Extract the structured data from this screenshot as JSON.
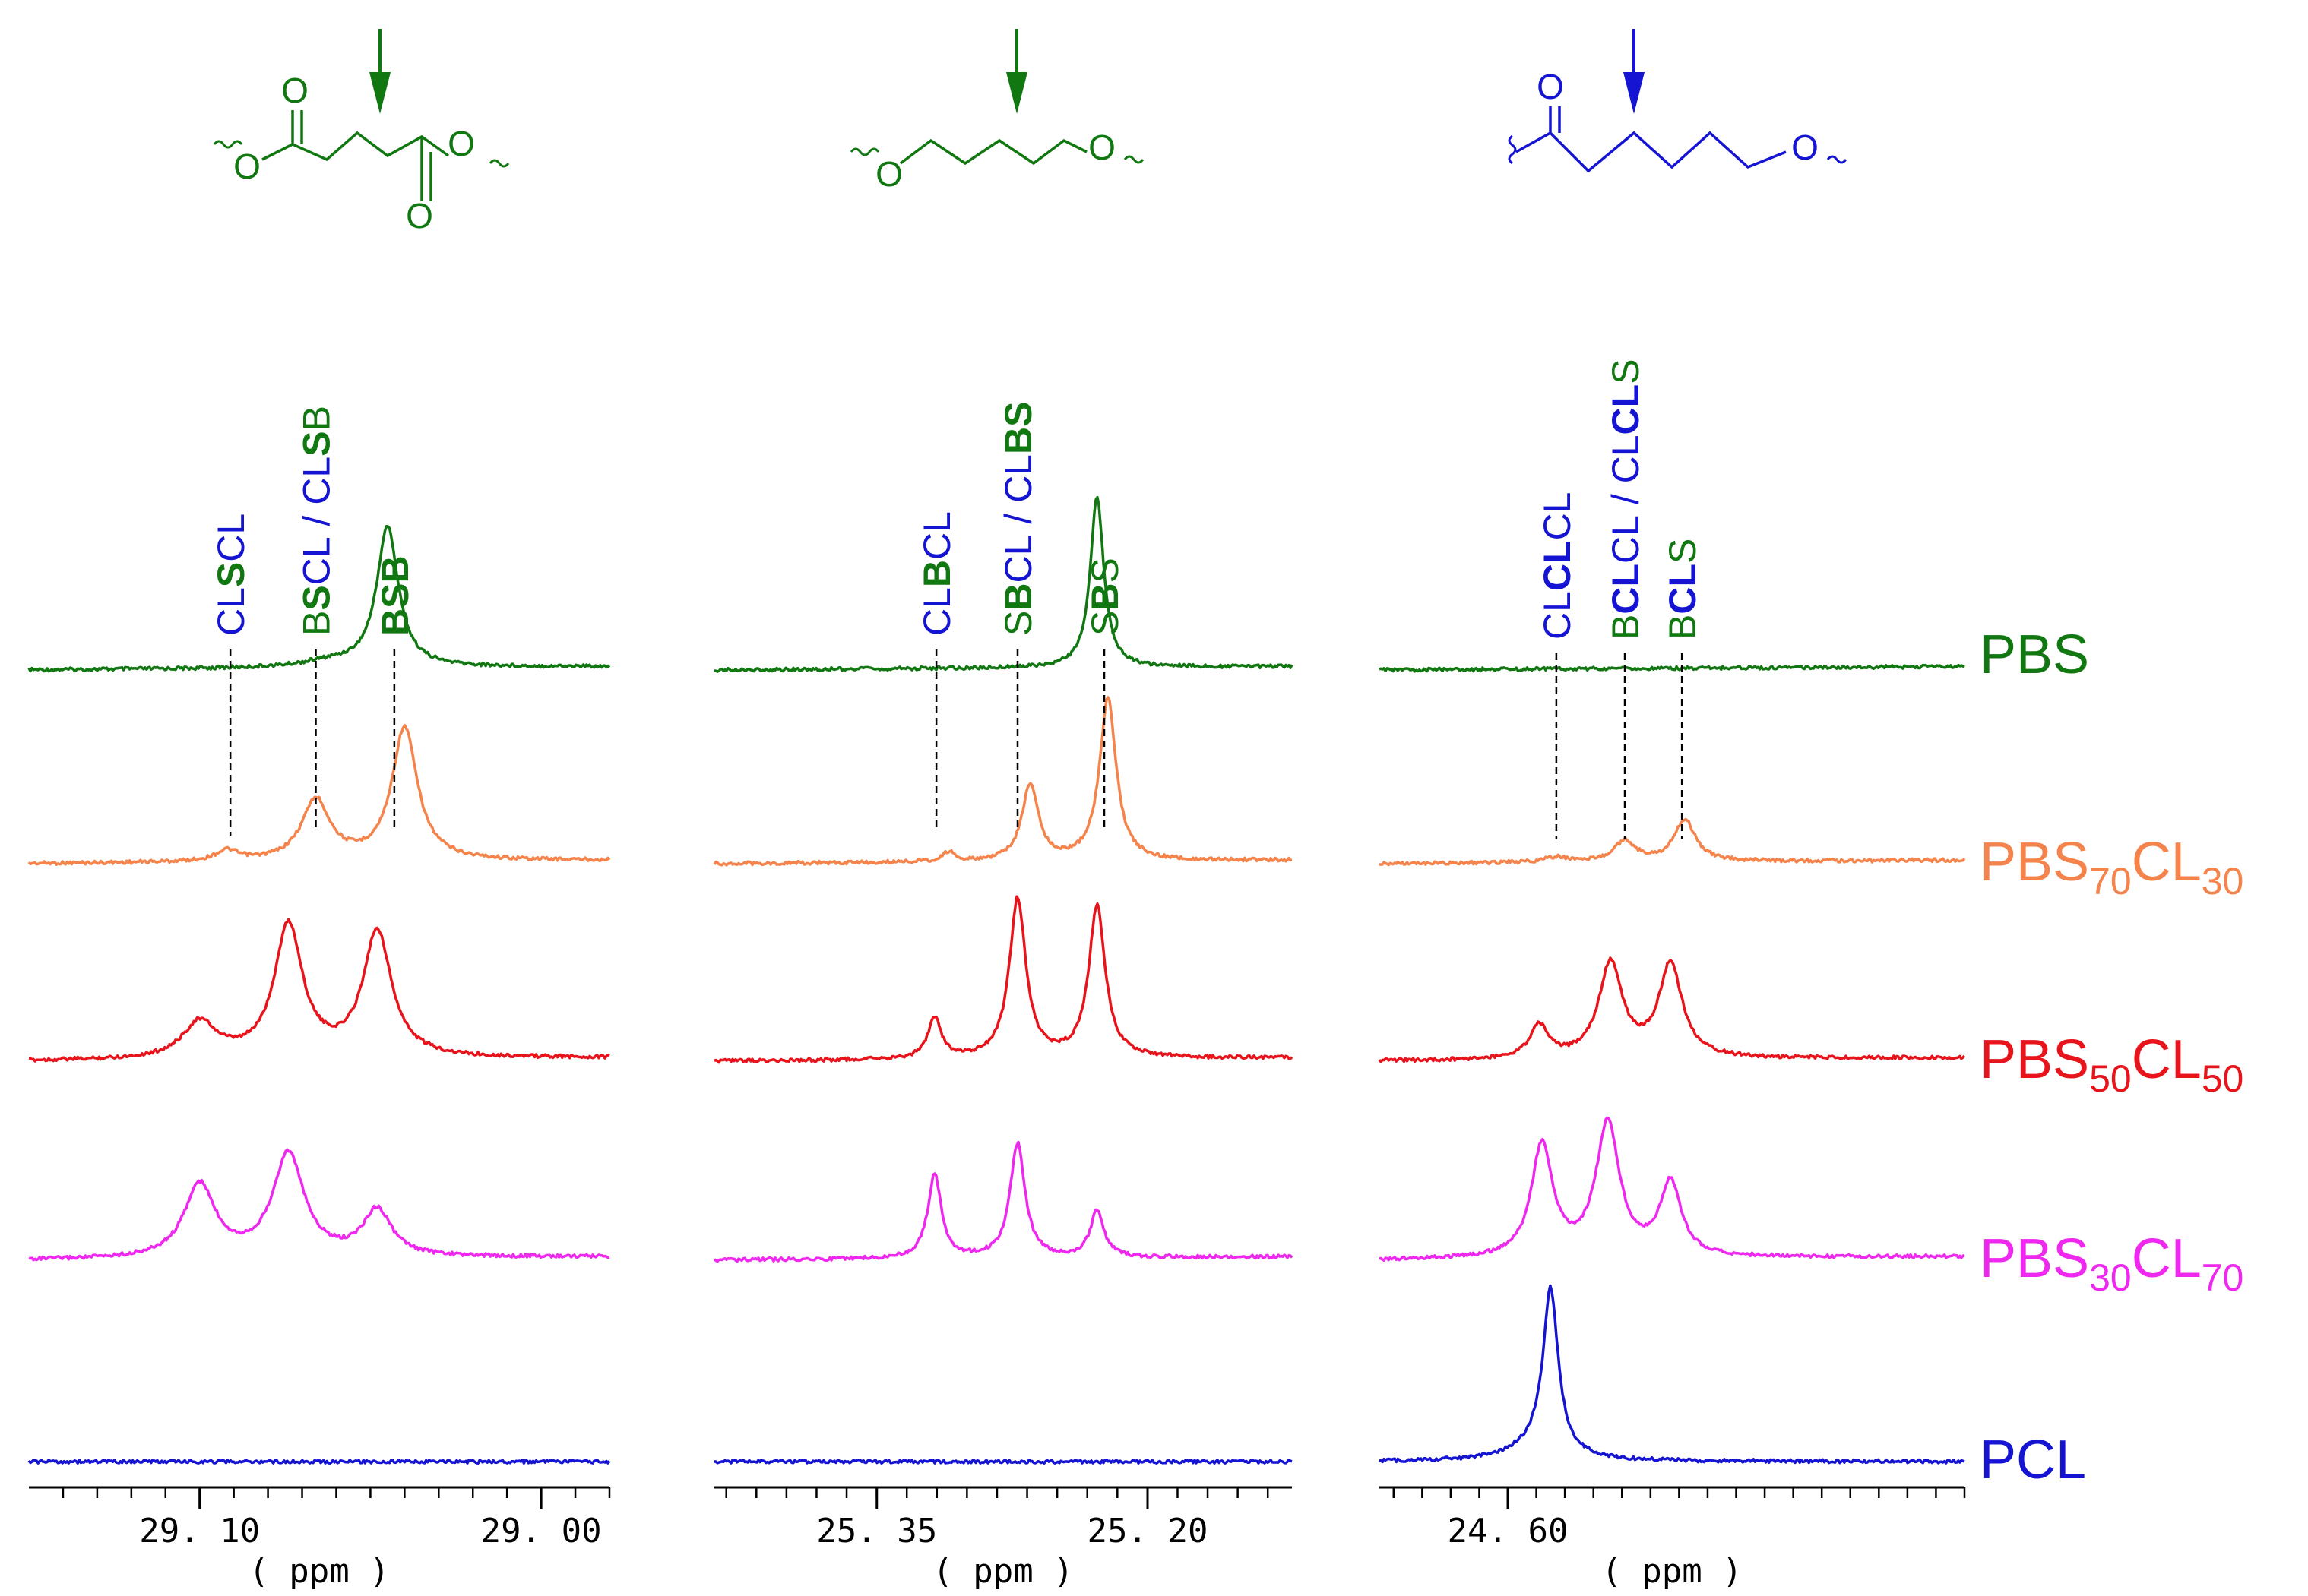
{
  "chart_data": {
    "type": "line",
    "title": "",
    "colors": {
      "PBS": "#117711",
      "PBS70CL30": "#F4844B",
      "PBS50CL50": "#E8141B",
      "PBS30CL70": "#EE28EE",
      "PCL": "#1414D2",
      "S_unit": "#117711",
      "B_unit": "#117711",
      "CL_unit": "#1414D2",
      "axis": "#000000"
    },
    "series_order": [
      "PBS",
      "PBS70CL30",
      "PBS50CL50",
      "PBS30CL70",
      "PCL"
    ],
    "series_labels": [
      {
        "key": "PBS",
        "base": "PBS",
        "sub1": "",
        "mid": "",
        "sub2": ""
      },
      {
        "key": "PBS70CL30",
        "base": "PBS",
        "sub1": "70",
        "mid": "CL",
        "sub2": "30"
      },
      {
        "key": "PBS50CL50",
        "base": "PBS",
        "sub1": "50",
        "mid": "CL",
        "sub2": "50"
      },
      {
        "key": "PBS30CL70",
        "base": "PBS",
        "sub1": "30",
        "mid": "CL",
        "sub2": "70"
      },
      {
        "key": "PCL",
        "base": "PCL",
        "sub1": "",
        "mid": "",
        "sub2": ""
      }
    ],
    "panels": [
      {
        "id": "panel-1",
        "xlabel": "( ppm )",
        "xlim": [
          29.15,
          28.98
        ],
        "ticks_major": [
          29.1,
          29.0
        ],
        "tick_labels": [
          "29. 10",
          "29. 00"
        ],
        "minor_step": 0.01,
        "structure": "succinate",
        "assignments": [
          {
            "x": 29.091,
            "parts": [
              {
                "t": "CL",
                "c": "CL_unit",
                "b": false
              },
              {
                "t": "S",
                "c": "S_unit",
                "b": true
              },
              {
                "t": "CL",
                "c": "CL_unit",
                "b": false
              }
            ]
          },
          {
            "x": 29.066,
            "parts": [
              {
                "t": "B",
                "c": "B_unit",
                "b": false
              },
              {
                "t": "S",
                "c": "S_unit",
                "b": true
              },
              {
                "t": "CL",
                "c": "CL_unit",
                "b": false
              },
              {
                "t": " / ",
                "c": "CL_unit",
                "b": false
              },
              {
                "t": "CL",
                "c": "CL_unit",
                "b": false
              },
              {
                "t": "S",
                "c": "S_unit",
                "b": true
              },
              {
                "t": "B",
                "c": "B_unit",
                "b": false
              }
            ]
          },
          {
            "x": 29.043,
            "parts": [
              {
                "t": "B",
                "c": "B_unit",
                "b": true
              },
              {
                "t": "S",
                "c": "S_unit",
                "b": true
              },
              {
                "t": "B",
                "c": "B_unit",
                "b": true
              }
            ]
          }
        ],
        "spectra": {
          "PBS": [
            {
              "center": 29.045,
              "height": 1.0,
              "width": 0.0038
            },
            {
              "center": 29.062,
              "height": 0.04,
              "width": 0.01
            }
          ],
          "PBS70CL30": [
            {
              "center": 29.04,
              "height": 1.0,
              "width": 0.0045
            },
            {
              "center": 29.066,
              "height": 0.46,
              "width": 0.005
            },
            {
              "center": 29.092,
              "height": 0.08,
              "width": 0.004
            }
          ],
          "PBS50CL50": [
            {
              "center": 29.048,
              "height": 0.95,
              "width": 0.005
            },
            {
              "center": 29.074,
              "height": 1.0,
              "width": 0.005
            },
            {
              "center": 29.1,
              "height": 0.27,
              "width": 0.006
            }
          ],
          "PBS30CL70": [
            {
              "center": 29.048,
              "height": 0.35,
              "width": 0.005
            },
            {
              "center": 29.074,
              "height": 0.78,
              "width": 0.0055
            },
            {
              "center": 29.1,
              "height": 0.55,
              "width": 0.0055
            }
          ],
          "PCL": []
        }
      },
      {
        "id": "panel-2",
        "xlabel": "( ppm )",
        "xlim": [
          25.44,
          25.12
        ],
        "ticks_major": [
          25.35,
          25.2
        ],
        "tick_labels": [
          "25. 35",
          "25. 20"
        ],
        "minor_step": 0.0166667,
        "structure": "butanediol",
        "assignments": [
          {
            "x": 25.317,
            "parts": [
              {
                "t": "CL",
                "c": "CL_unit",
                "b": false
              },
              {
                "t": "B",
                "c": "B_unit",
                "b": true
              },
              {
                "t": "CL",
                "c": "CL_unit",
                "b": false
              }
            ]
          },
          {
            "x": 25.272,
            "parts": [
              {
                "t": "S",
                "c": "S_unit",
                "b": false
              },
              {
                "t": "B",
                "c": "B_unit",
                "b": true
              },
              {
                "t": "CL",
                "c": "CL_unit",
                "b": false
              },
              {
                "t": " / ",
                "c": "CL_unit",
                "b": false
              },
              {
                "t": "CL",
                "c": "CL_unit",
                "b": false
              },
              {
                "t": "B",
                "c": "B_unit",
                "b": true
              },
              {
                "t": "S",
                "c": "S_unit",
                "b": true
              }
            ]
          },
          {
            "x": 25.224,
            "parts": [
              {
                "t": "S",
                "c": "S_unit",
                "b": false
              },
              {
                "t": "B",
                "c": "B_unit",
                "b": true
              },
              {
                "t": "S",
                "c": "S_unit",
                "b": false
              }
            ]
          }
        ],
        "spectra": {
          "PBS": [
            {
              "center": 25.228,
              "height": 1.0,
              "width": 0.0045
            }
          ],
          "PBS70CL30": [
            {
              "center": 25.222,
              "height": 1.0,
              "width": 0.0055
            },
            {
              "center": 25.265,
              "height": 0.47,
              "width": 0.0055
            },
            {
              "center": 25.31,
              "height": 0.06,
              "width": 0.004
            }
          ],
          "PBS50CL50": [
            {
              "center": 25.228,
              "height": 1.0,
              "width": 0.0055
            },
            {
              "center": 25.272,
              "height": 1.05,
              "width": 0.0055
            },
            {
              "center": 25.318,
              "height": 0.27,
              "width": 0.0045
            }
          ],
          "PBS30CL70": [
            {
              "center": 25.228,
              "height": 0.35,
              "width": 0.0045
            },
            {
              "center": 25.272,
              "height": 0.86,
              "width": 0.005
            },
            {
              "center": 25.318,
              "height": 0.63,
              "width": 0.0045
            }
          ],
          "PCL": []
        }
      },
      {
        "id": "panel-3",
        "xlabel": "( ppm )",
        "xlim": [
          24.645,
          24.44
        ],
        "ticks_major": [
          24.6
        ],
        "tick_labels": [
          "24. 60"
        ],
        "minor_step": 0.01,
        "structure": "caproate",
        "assignments": [
          {
            "x": 24.583,
            "parts": [
              {
                "t": "CL",
                "c": "CL_unit",
                "b": false
              },
              {
                "t": "CL",
                "c": "CL_unit",
                "b": true
              },
              {
                "t": "CL",
                "c": "CL_unit",
                "b": false
              }
            ]
          },
          {
            "x": 24.559,
            "parts": [
              {
                "t": "B",
                "c": "B_unit",
                "b": false
              },
              {
                "t": "CL",
                "c": "CL_unit",
                "b": true
              },
              {
                "t": "CL",
                "c": "CL_unit",
                "b": false
              },
              {
                "t": " / ",
                "c": "CL_unit",
                "b": false
              },
              {
                "t": "CL",
                "c": "CL_unit",
                "b": false
              },
              {
                "t": "CL",
                "c": "CL_unit",
                "b": true
              },
              {
                "t": "S",
                "c": "S_unit",
                "b": false
              }
            ]
          },
          {
            "x": 24.539,
            "parts": [
              {
                "t": "B",
                "c": "B_unit",
                "b": false
              },
              {
                "t": "CL",
                "c": "CL_unit",
                "b": true
              },
              {
                "t": "S",
                "c": "S_unit",
                "b": false
              }
            ]
          }
        ],
        "spectra": {
          "PBS": [],
          "PBS70CL30": [
            {
              "center": 24.538,
              "height": 1.0,
              "width": 0.0045
            },
            {
              "center": 24.559,
              "height": 0.5,
              "width": 0.0045
            },
            {
              "center": 24.583,
              "height": 0.12,
              "width": 0.005
            }
          ],
          "PBS50CL50": [
            {
              "center": 24.543,
              "height": 0.98,
              "width": 0.005
            },
            {
              "center": 24.564,
              "height": 1.0,
              "width": 0.005
            },
            {
              "center": 24.589,
              "height": 0.35,
              "width": 0.004
            }
          ],
          "PBS30CL70": [
            {
              "center": 24.543,
              "height": 0.55,
              "width": 0.0045
            },
            {
              "center": 24.565,
              "height": 1.0,
              "width": 0.005
            },
            {
              "center": 24.588,
              "height": 0.85,
              "width": 0.0045
            }
          ],
          "PCL": [
            {
              "center": 24.585,
              "height": 1.0,
              "width": 0.0032
            },
            {
              "center": 24.59,
              "height": 0.08,
              "width": 0.012
            }
          ]
        }
      }
    ],
    "structure_atoms": {
      "succinate": [
        "O",
        "O",
        "O",
        "O"
      ],
      "butanediol": [
        "O",
        "O"
      ],
      "caproate": [
        "O",
        "O"
      ]
    }
  }
}
